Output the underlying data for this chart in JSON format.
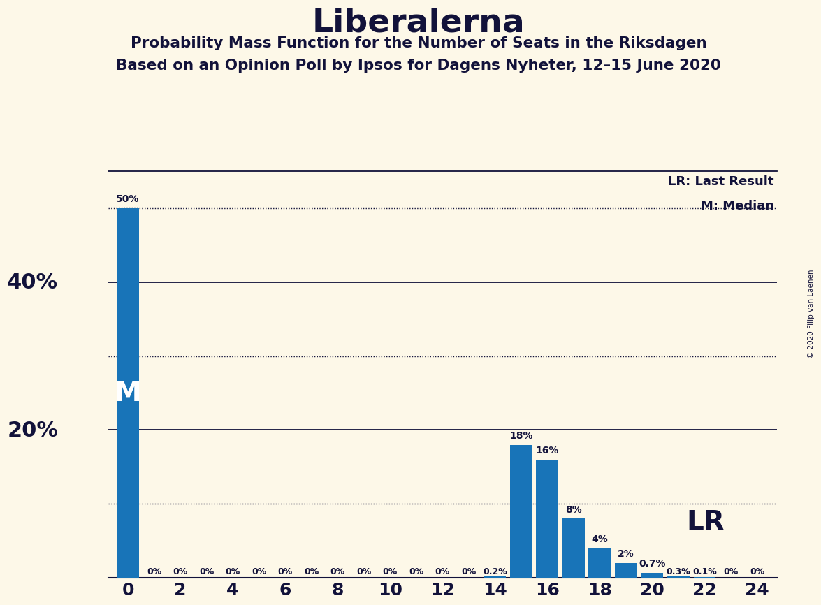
{
  "title": "Liberalerna",
  "subtitle1": "Probability Mass Function for the Number of Seats in the Riksdagen",
  "subtitle2": "Based on an Opinion Poll by Ipsos for Dagens Nyheter, 12–15 June 2020",
  "copyright": "© 2020 Filip van Laenen",
  "seats": [
    0,
    1,
    2,
    3,
    4,
    5,
    6,
    7,
    8,
    9,
    10,
    11,
    12,
    13,
    14,
    15,
    16,
    17,
    18,
    19,
    20,
    21,
    22,
    23,
    24
  ],
  "probabilities": [
    50,
    0,
    0,
    0,
    0,
    0,
    0,
    0,
    0,
    0,
    0,
    0,
    0,
    0,
    0.2,
    18,
    16,
    8,
    4,
    2,
    0.7,
    0.3,
    0.1,
    0,
    0
  ],
  "bar_color": "#1874b8",
  "background_color": "#fdf8e8",
  "text_color": "#12123a",
  "grid_major_color": "#12123a",
  "grid_minor_color": "#12123a",
  "median_seat": 0,
  "last_result_seat": 20,
  "ylim": [
    0,
    55
  ],
  "major_yticks": [
    20,
    40
  ],
  "minor_yticks": [
    10,
    30,
    50
  ],
  "lr_legend": "LR: Last Result",
  "m_legend": "M: Median",
  "bar_labels": {
    "0": "50%",
    "1": "0%",
    "2": "0%",
    "3": "0%",
    "4": "0%",
    "5": "0%",
    "6": "0%",
    "7": "0%",
    "8": "0%",
    "9": "0%",
    "10": "0%",
    "11": "0%",
    "12": "0%",
    "13": "0%",
    "14": "0.2%",
    "15": "18%",
    "16": "16%",
    "17": "8%",
    "18": "4%",
    "19": "2%",
    "20": "0.7%",
    "21": "0.3%",
    "22": "0.1%",
    "23": "0%",
    "24": "0%"
  }
}
